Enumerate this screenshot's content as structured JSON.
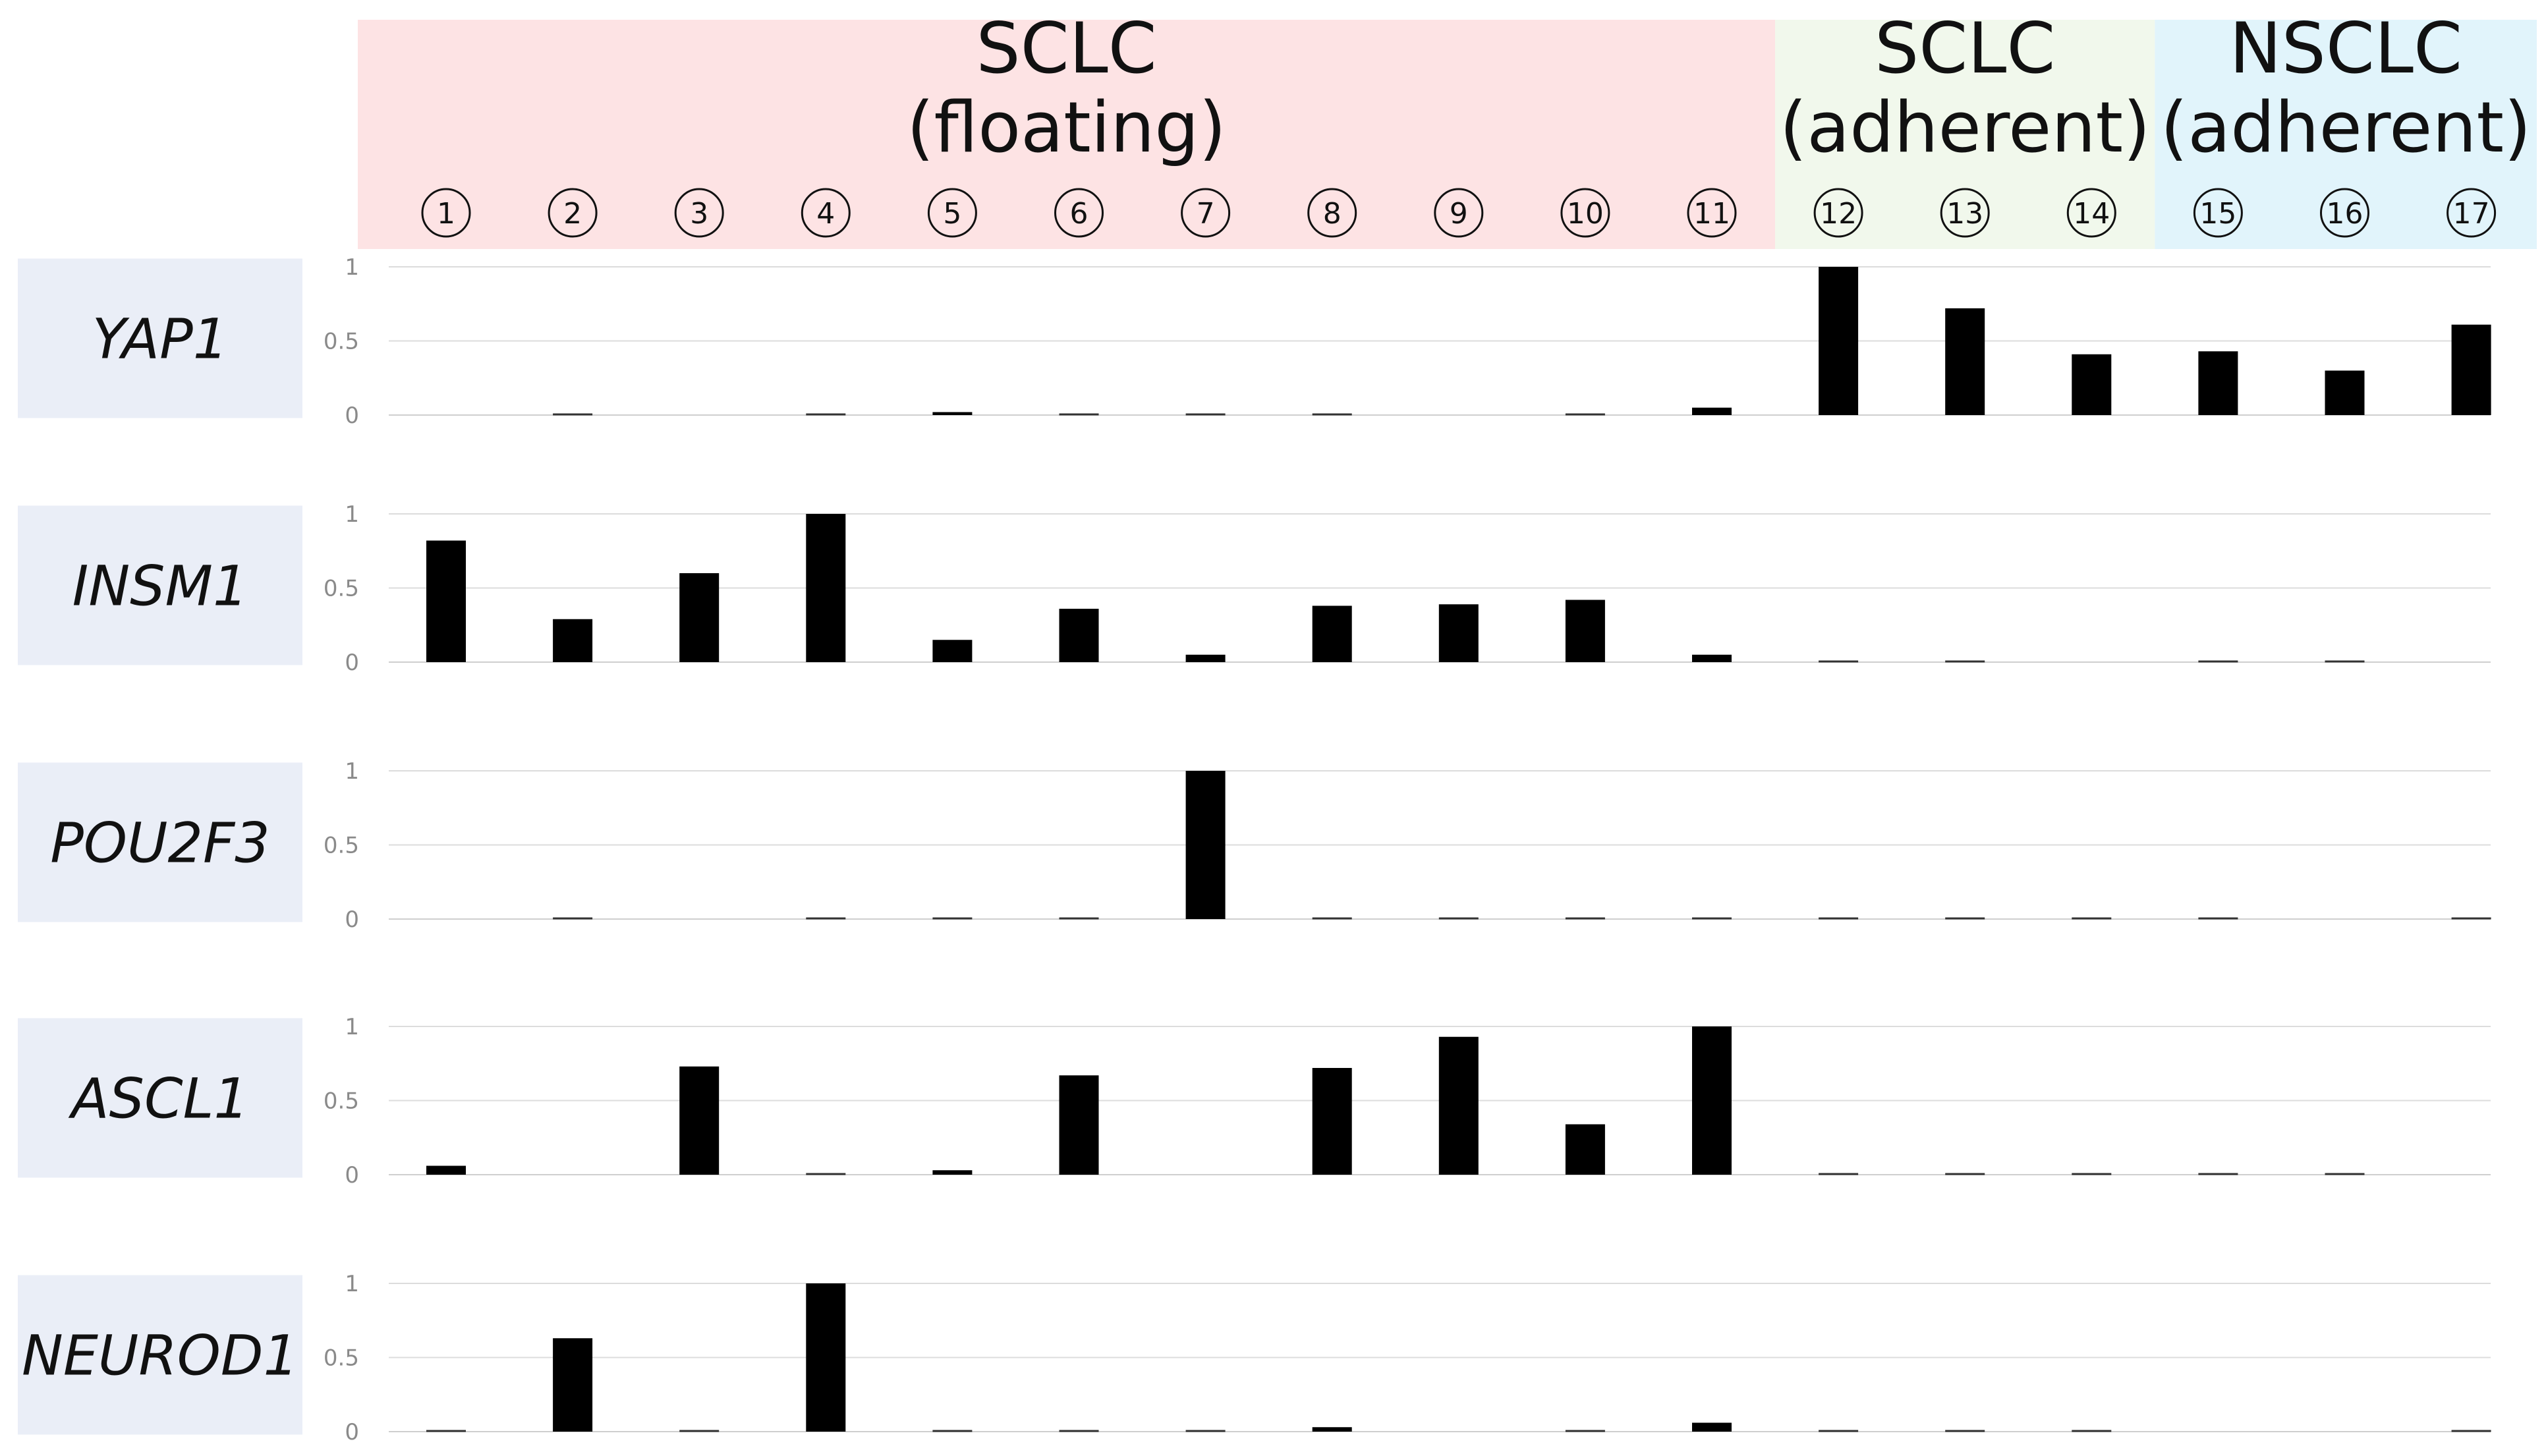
{
  "groups": [
    {
      "title_lines": [
        "SCLC",
        "(floating)"
      ],
      "from": 0,
      "to": 10,
      "color": "#fde3e4"
    },
    {
      "title_lines": [
        "SCLC",
        "(adherent)"
      ],
      "from": 11,
      "to": 13,
      "color": "#f1f8ec"
    },
    {
      "title_lines": [
        "NSCLC",
        "(adherent)"
      ],
      "from": 14,
      "to": 16,
      "color": "#e1f4fb"
    }
  ],
  "chart_data": {
    "type": "bar",
    "categories": [
      "①",
      "②",
      "③",
      "④",
      "⑤",
      "⑥",
      "⑦",
      "⑧",
      "⑨",
      "⑩",
      "⑪",
      "⑫",
      "⑬",
      "⑭",
      "⑮",
      "⑯",
      "⑰"
    ],
    "ylim": [
      0,
      1
    ],
    "yticks": [
      "0",
      "0.5",
      "1"
    ],
    "grid": true,
    "series": [
      {
        "name": "YAP1",
        "values": [
          0,
          0.005,
          0,
          0.005,
          0.02,
          0.005,
          0.005,
          0.005,
          0,
          0.005,
          0.05,
          1.0,
          0.72,
          0.41,
          0.43,
          0.3,
          0.61
        ]
      },
      {
        "name": "INSM1",
        "values": [
          0.82,
          0.29,
          0.6,
          1.0,
          0.15,
          0.36,
          0.05,
          0.38,
          0.39,
          0.42,
          0.05,
          0.005,
          0.005,
          0,
          0.005,
          0.005,
          0
        ]
      },
      {
        "name": "POU2F3",
        "values": [
          0,
          0.005,
          0,
          0.005,
          0.005,
          0.005,
          1.0,
          0.005,
          0.005,
          0.005,
          0.005,
          0.005,
          0.005,
          0.005,
          0.005,
          0,
          0.005
        ]
      },
      {
        "name": "ASCL1",
        "values": [
          0.06,
          0,
          0.73,
          0.01,
          0.03,
          0.67,
          0,
          0.72,
          0.93,
          0.34,
          1.0,
          0.005,
          0.005,
          0.005,
          0.005,
          0.005,
          0
        ]
      },
      {
        "name": "NEUROD1",
        "values": [
          0.005,
          0.63,
          0.005,
          1.0,
          0.005,
          0.005,
          0.005,
          0.03,
          0,
          0.005,
          0.06,
          0.01,
          0.005,
          0.005,
          0,
          0,
          0.005
        ]
      }
    ]
  },
  "style": {
    "bar_color": "#000000",
    "gene_box_color": "#eaeef7"
  }
}
